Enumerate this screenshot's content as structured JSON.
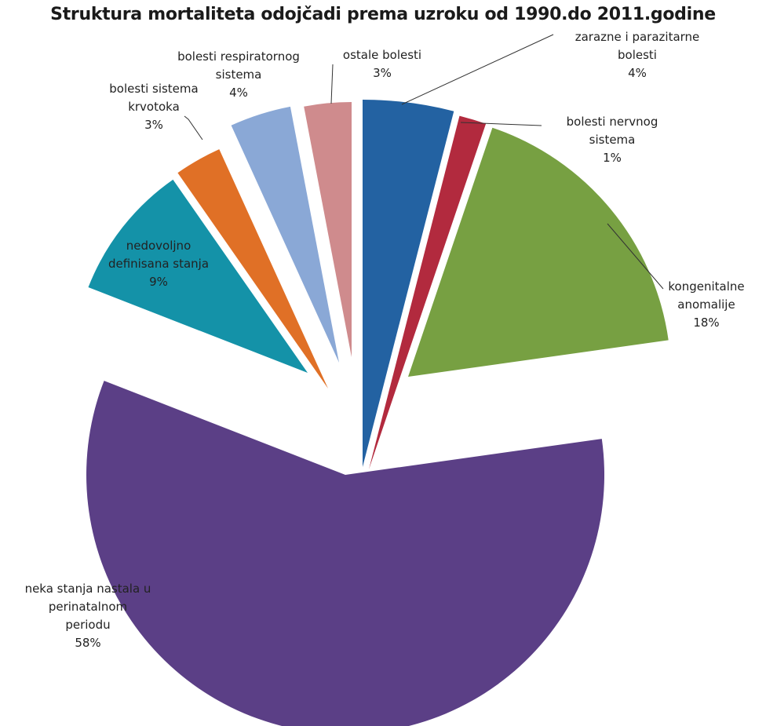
{
  "chart_data": {
    "type": "pie",
    "exploded": true,
    "title": "Struktura mortaliteta odojčadi prema uzroku od 1990.do 2011.godine",
    "slices": [
      {
        "label_lines": [
          "zarazne i parazitarne",
          "bolesti"
        ],
        "pct_label": "4%",
        "value": 4,
        "color": "#2362a2"
      },
      {
        "label_lines": [
          "bolesti nervnog",
          "sistema"
        ],
        "pct_label": "1%",
        "value": 1.2,
        "color": "#b22a3e"
      },
      {
        "label_lines": [
          "kongenitalne",
          "anomalije"
        ],
        "pct_label": "18%",
        "value": 17.6,
        "color": "#77a042"
      },
      {
        "label_lines": [
          "neka stanja nastala u",
          "perinatalnom",
          "periodu"
        ],
        "pct_label": "58%",
        "value": 58.2,
        "color": "#5b3f86"
      },
      {
        "label_lines": [
          "nedovoljno",
          "definisana stanja"
        ],
        "pct_label": "9%",
        "value": 9.4,
        "color": "#1492a8"
      },
      {
        "label_lines": [
          "bolesti sistema",
          "krvotoka"
        ],
        "pct_label": "3%",
        "value": 2.9,
        "color": "#e07026"
      },
      {
        "label_lines": [
          "bolesti respiratornog",
          "sistema"
        ],
        "pct_label": "4%",
        "value": 3.8,
        "color": "#8aa8d6"
      },
      {
        "label_lines": [
          "ostale bolesti"
        ],
        "pct_label": "3%",
        "value": 3.0,
        "color": "#cf8b8d"
      }
    ]
  }
}
